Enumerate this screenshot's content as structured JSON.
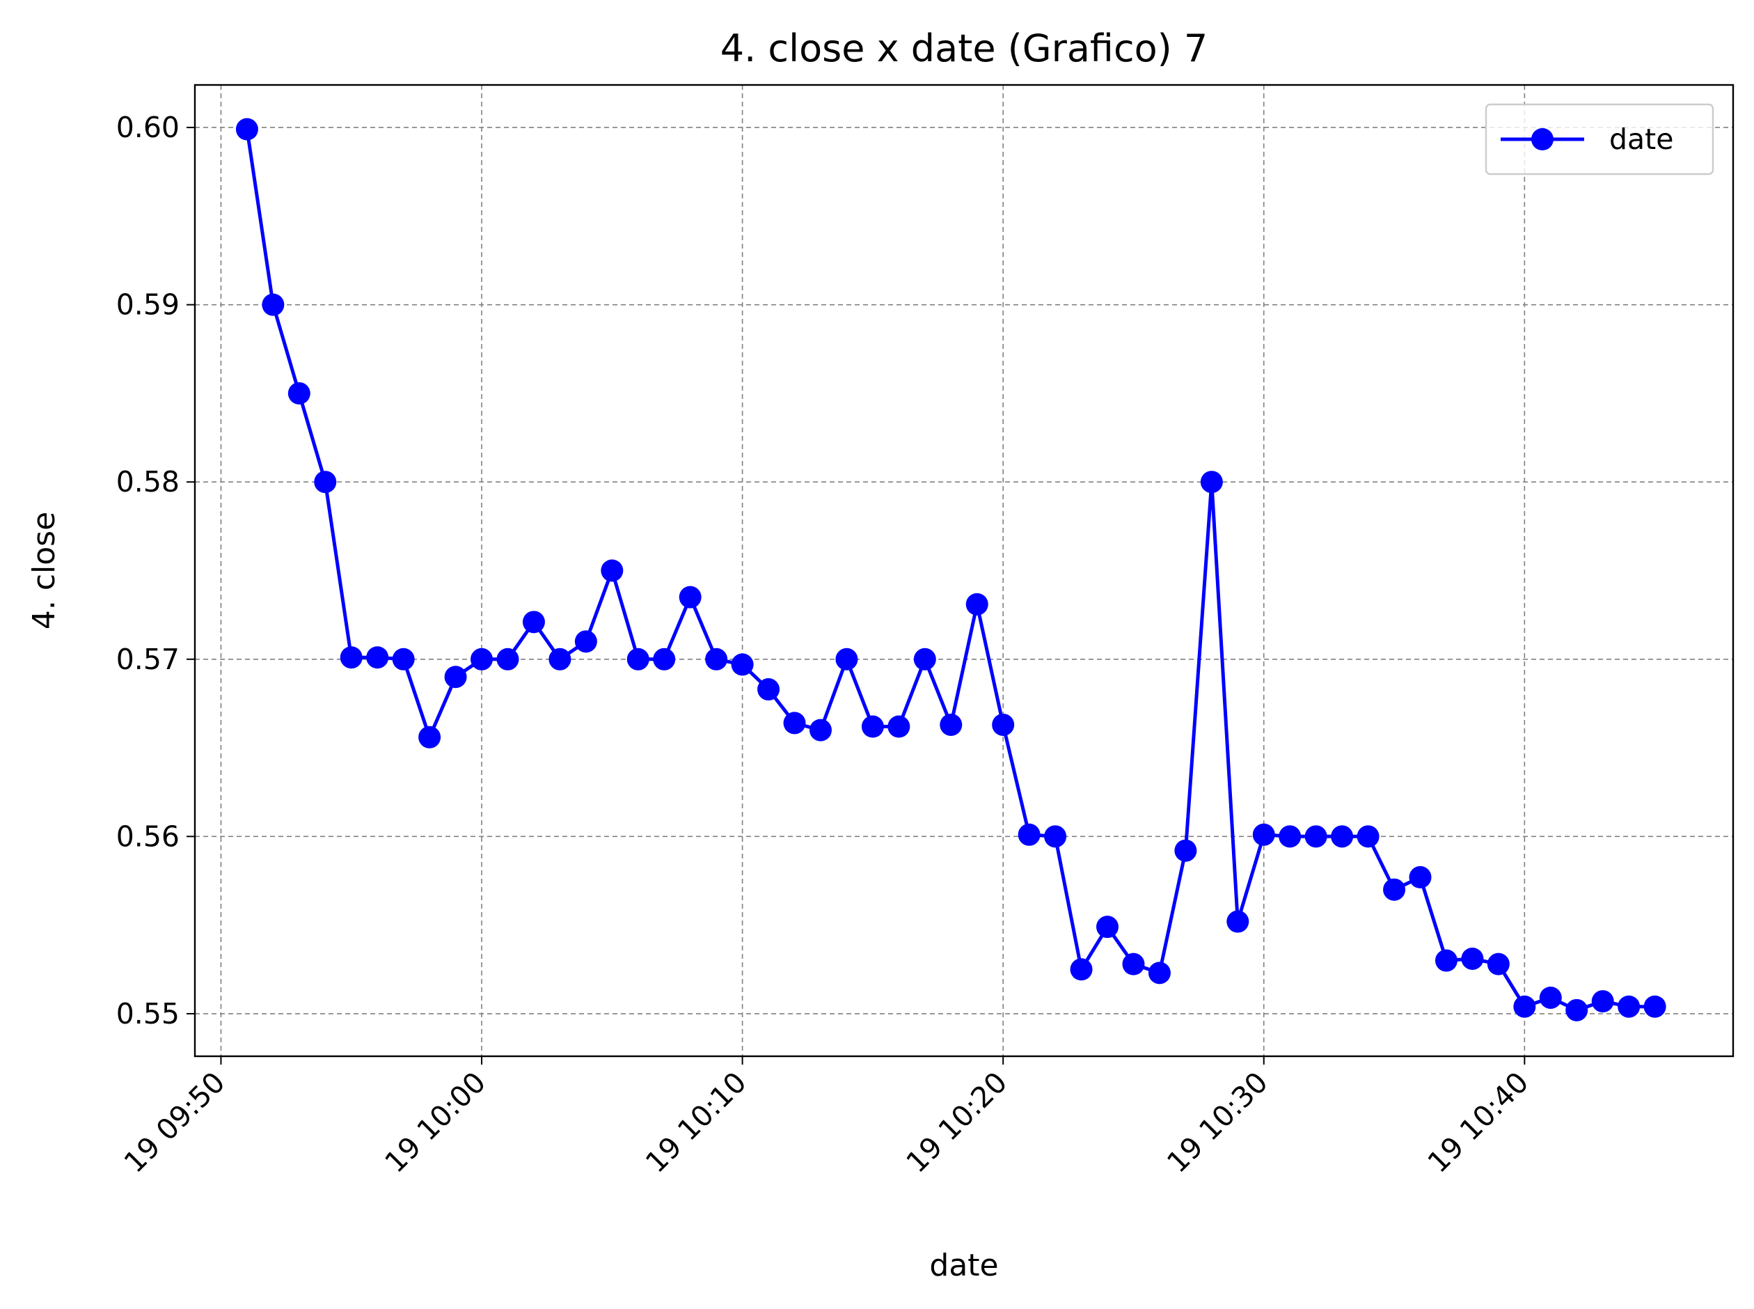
{
  "chart_data": {
    "type": "line",
    "title": "4. close x date (Grafico) 7",
    "xlabel": "date",
    "ylabel": "4. close",
    "x_unit": "minutes",
    "x_start": "09:51",
    "x_end": "10:45",
    "xlim": [
      "09:49",
      "10:48"
    ],
    "ylim": [
      0.5476,
      0.6024
    ],
    "grid": true,
    "legend_position": "top-right",
    "x_ticks": [
      {
        "at": "09:50",
        "label": "19 09:50"
      },
      {
        "at": "10:00",
        "label": "19 10:00"
      },
      {
        "at": "10:10",
        "label": "19 10:10"
      },
      {
        "at": "10:20",
        "label": "19 10:20"
      },
      {
        "at": "10:30",
        "label": "19 10:30"
      },
      {
        "at": "10:40",
        "label": "19 10:40"
      }
    ],
    "y_ticks": [
      {
        "value": 0.55,
        "label": "0.55"
      },
      {
        "value": 0.56,
        "label": "0.56"
      },
      {
        "value": 0.57,
        "label": "0.57"
      },
      {
        "value": 0.58,
        "label": "0.58"
      },
      {
        "value": 0.59,
        "label": "0.59"
      },
      {
        "value": 0.6,
        "label": "0.60"
      }
    ],
    "series": [
      {
        "name": "date",
        "color": "#0000ff",
        "marker": "circle",
        "values": [
          0.5999,
          0.59,
          0.585,
          0.58,
          0.5701,
          0.5701,
          0.57,
          0.5656,
          0.569,
          0.57,
          0.57,
          0.5721,
          0.57,
          0.571,
          0.575,
          0.57,
          0.57,
          0.5735,
          0.57,
          0.5697,
          0.5683,
          0.5664,
          0.566,
          0.57,
          0.5662,
          0.5662,
          0.57,
          0.5663,
          0.5731,
          0.5663,
          0.5601,
          0.56,
          0.5525,
          0.5549,
          0.5528,
          0.5523,
          0.5592,
          0.58,
          0.5552,
          0.5601,
          0.56,
          0.56,
          0.56,
          0.56,
          0.557,
          0.5577,
          0.553,
          0.5531,
          0.5528,
          0.5504,
          0.5509,
          0.5502,
          0.5507,
          0.5504,
          0.5504
        ]
      }
    ]
  }
}
